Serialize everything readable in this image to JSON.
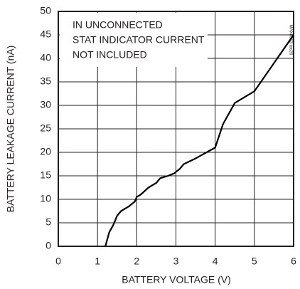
{
  "chart_data": {
    "type": "line",
    "annotation": [
      "IN UNCONNECTED",
      "STAT INDICATOR CURRENT",
      "NOT INCLUDED"
    ],
    "figure_id": "MAX8903 toc26",
    "x_label": "BATTERY VOLTAGE (V)",
    "y_label": "BATTERY LEAKAGE CURRENT (nA)",
    "xlim": [
      0,
      6
    ],
    "xticks": [
      0,
      1,
      2,
      3,
      4,
      5,
      6
    ],
    "ylim": [
      0,
      50
    ],
    "yticks": [
      0,
      5,
      10,
      15,
      20,
      25,
      30,
      35,
      40,
      45,
      50
    ],
    "grid": true,
    "series": [
      {
        "color": "#000000",
        "x": [
          1.2,
          1.3,
          1.4,
          1.5,
          1.6,
          1.8,
          1.95,
          2.0,
          2.1,
          2.3,
          2.5,
          2.6,
          2.8,
          2.95,
          3.1,
          3.2,
          3.5,
          4.0,
          4.2,
          4.5,
          5.0,
          5.5,
          6.0
        ],
        "values": [
          0,
          3,
          4.5,
          6.5,
          7.5,
          8.5,
          9.5,
          10.5,
          11,
          12.5,
          13.5,
          14.5,
          15,
          15.5,
          16.5,
          17.5,
          18.7,
          21,
          26,
          30.5,
          33,
          39,
          45
        ]
      }
    ]
  }
}
